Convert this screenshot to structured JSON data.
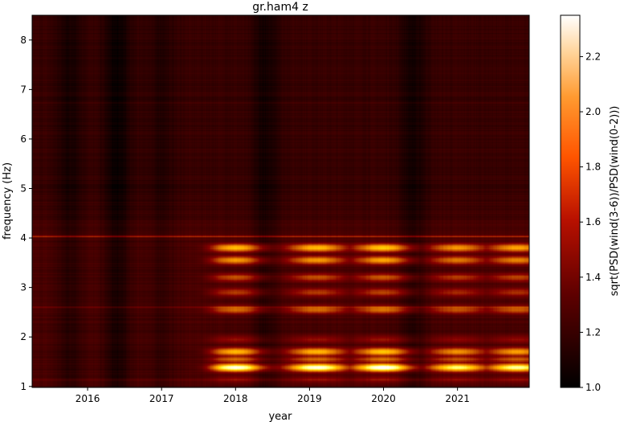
{
  "chart_data": {
    "type": "heatmap",
    "title": "gr.ham4 z",
    "xlabel": "year",
    "ylabel": "frequency (Hz)",
    "x_ticks": [
      "2016",
      "2017",
      "2018",
      "2019",
      "2020",
      "2021"
    ],
    "y_ticks": [
      "1",
      "2",
      "3",
      "4",
      "5",
      "6",
      "7",
      "8"
    ],
    "xlim": [
      2015.25,
      2021.97
    ],
    "ylim": [
      0.98,
      8.5
    ],
    "colormap": "gist_heat",
    "colorbar": {
      "label": "sqrt(PSD(wind(3-6))/PSD(wind(0-2)))",
      "ticks": [
        "1.0",
        "1.2",
        "1.4",
        "1.6",
        "1.8",
        "2.0",
        "2.2"
      ],
      "range": [
        1.0,
        2.35
      ]
    },
    "features": {
      "dark_epochs": [
        {
          "year": 2015.75,
          "strength": 0.12
        },
        {
          "year": 2016.4,
          "strength": 0.18
        },
        {
          "year": 2017.0,
          "strength": 0.08
        },
        {
          "year": 2018.4,
          "strength": 0.14
        },
        {
          "year": 2020.4,
          "strength": 0.14
        }
      ],
      "bright_epochs": [
        {
          "year": 2018.0,
          "strength": 1.0
        },
        {
          "year": 2019.1,
          "strength": 1.0
        },
        {
          "year": 2020.0,
          "strength": 1.05
        },
        {
          "year": 2021.0,
          "strength": 0.85
        },
        {
          "year": 2021.8,
          "strength": 0.9
        }
      ],
      "seasonal_onset_year": 2017.6,
      "frequency_bands": [
        {
          "freq_hz": 1.38,
          "value": 2.3
        },
        {
          "freq_hz": 1.7,
          "value": 1.95
        },
        {
          "freq_hz": 1.55,
          "value": 1.7
        },
        {
          "freq_hz": 3.8,
          "value": 1.95
        },
        {
          "freq_hz": 3.55,
          "value": 1.85
        },
        {
          "freq_hz": 3.2,
          "value": 1.65
        },
        {
          "freq_hz": 2.9,
          "value": 1.6
        },
        {
          "freq_hz": 2.55,
          "value": 1.7
        },
        {
          "freq_hz": 1.95,
          "value": 1.45
        },
        {
          "freq_hz": 1.15,
          "value": 1.4
        }
      ],
      "persistent_lines": [
        {
          "freq_hz": 4.03,
          "value": 1.55
        },
        {
          "freq_hz": 2.6,
          "value": 1.35
        },
        {
          "freq_hz": 6.73,
          "value": 1.25
        },
        {
          "freq_hz": 1.13,
          "value": 1.3
        }
      ]
    }
  }
}
